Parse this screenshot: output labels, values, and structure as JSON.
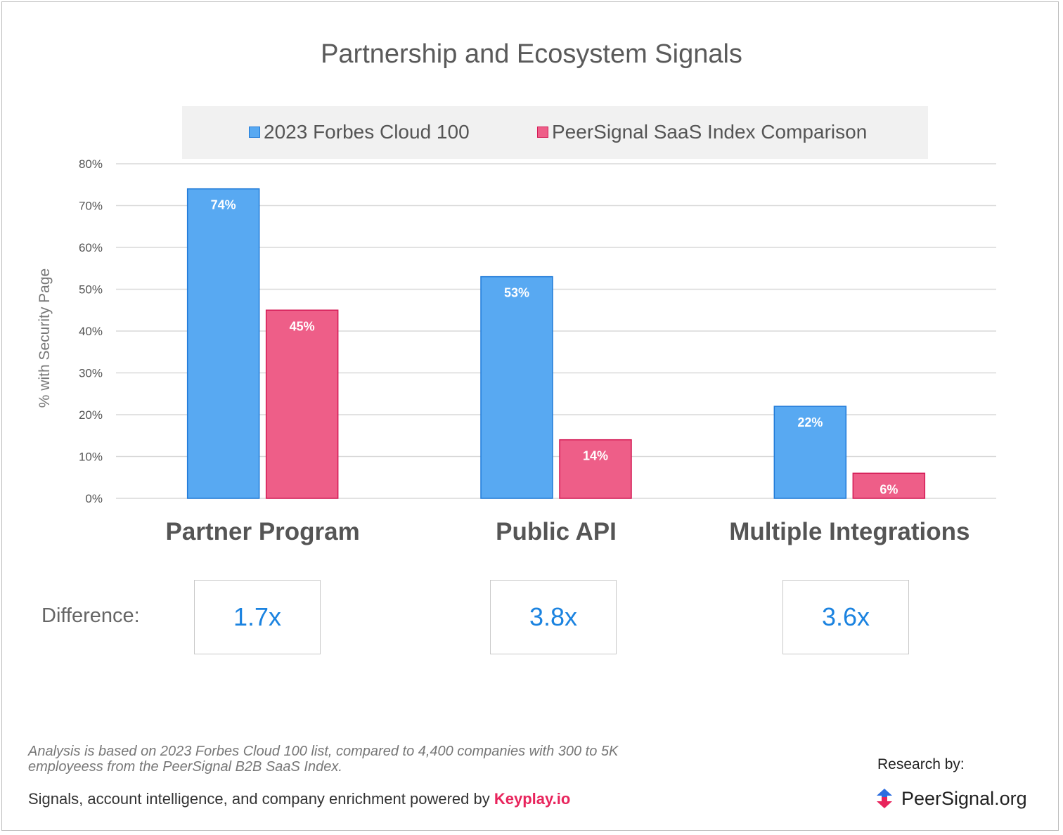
{
  "chart_data": {
    "type": "bar",
    "title": "Partnership and Ecosystem Signals",
    "xlabel": "",
    "ylabel": "% with Security Page",
    "ylim": [
      0,
      80
    ],
    "yticks": [
      "0%",
      "10%",
      "20%",
      "30%",
      "40%",
      "50%",
      "60%",
      "70%",
      "80%"
    ],
    "categories": [
      "Partner Program",
      "Public API",
      "Multiple Integrations"
    ],
    "series": [
      {
        "name": "2023 Forbes Cloud 100",
        "values": [
          74,
          53,
          22
        ],
        "labels": [
          "74%",
          "53%",
          "22%"
        ],
        "color": "#58a9f2",
        "border": "#1f7ad8"
      },
      {
        "name": "PeerSignal SaaS Index Comparison",
        "values": [
          45,
          14,
          6
        ],
        "labels": [
          "45%",
          "14%",
          "6%"
        ],
        "color": "#ee5e88",
        "border": "#d41a55"
      }
    ],
    "grid": true,
    "legend_position": "top"
  },
  "difference": {
    "label": "Difference:",
    "values": [
      "1.7x",
      "3.8x",
      "3.6x"
    ],
    "color": "#1b83e0"
  },
  "footer": {
    "note": "Analysis is based on 2023 Forbes Cloud 100 list, compared to 4,400 companies with 300 to 5K employeess from the PeerSignal B2B SaaS Index.",
    "powered_prefix": "Signals, account intelligence, and company enrichment powered by",
    "powered_brand": "Keyplay.io",
    "research_by": "Research by:",
    "logo_text": "PeerSignal.org"
  }
}
